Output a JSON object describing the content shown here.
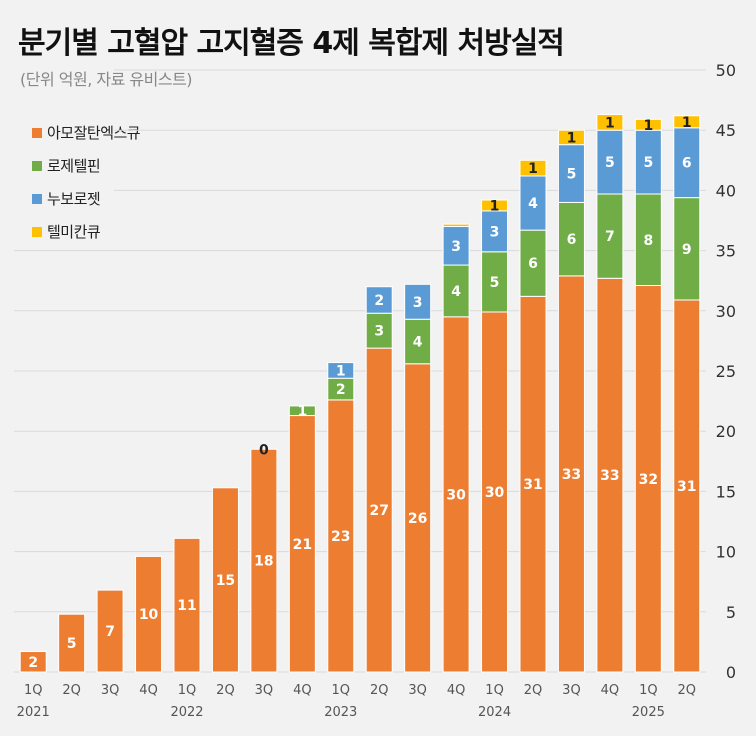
{
  "header": {
    "title": "분기별 고혈압 고지혈증 4제 복합제 처방실적",
    "subtitle": "(단위 억원, 자료 유비스트)"
  },
  "colors": {
    "아모잘탄엑스큐": "#ed7d31",
    "로제텔핀": "#70ad47",
    "누보로젯": "#5b9bd5",
    "텔미칸큐": "#ffc000"
  },
  "chart_data": {
    "type": "bar",
    "stacked": true,
    "title": "분기별 고혈압 고지혈증 4제 복합제 처방실적",
    "subtitle": "(단위 억원, 자료 유비스트)",
    "categories": [
      "1Q",
      "2Q",
      "3Q",
      "4Q",
      "1Q",
      "2Q",
      "3Q",
      "4Q",
      "1Q",
      "2Q",
      "3Q",
      "4Q",
      "1Q",
      "2Q",
      "3Q",
      "4Q",
      "1Q",
      "2Q"
    ],
    "year_labels": [
      {
        "index": 0,
        "label": "2021"
      },
      {
        "index": 4,
        "label": "2022"
      },
      {
        "index": 8,
        "label": "2023"
      },
      {
        "index": 12,
        "label": "2024"
      },
      {
        "index": 16,
        "label": "2025"
      }
    ],
    "series": [
      {
        "name": "아모잘탄엑스큐",
        "values": [
          1.7,
          4.8,
          6.8,
          9.6,
          11.1,
          15.3,
          18.5,
          21.3,
          22.6,
          26.9,
          25.6,
          29.5,
          29.9,
          31.2,
          32.9,
          32.7,
          32.1,
          30.9
        ],
        "labels": [
          "2",
          "5",
          "7",
          "10",
          "11",
          "15",
          "18",
          "21",
          "23",
          "27",
          "26",
          "30",
          "30",
          "31",
          "33",
          "33",
          "32",
          "31"
        ]
      },
      {
        "name": "로제텔핀",
        "values": [
          0,
          0,
          0,
          0,
          0,
          0,
          0,
          0.8,
          1.8,
          2.9,
          3.7,
          4.3,
          5.0,
          5.5,
          6.1,
          7.0,
          7.6,
          8.5
        ],
        "labels": [
          "",
          "",
          "",
          "",
          "",
          "",
          "",
          "1",
          "2",
          "3",
          "4",
          "4",
          "5",
          "6",
          "6",
          "7",
          "8",
          "9"
        ]
      },
      {
        "name": "누보로젯",
        "values": [
          0,
          0,
          0,
          0,
          0,
          0,
          0,
          0,
          1.3,
          2.2,
          2.9,
          3.2,
          3.4,
          4.5,
          4.8,
          5.3,
          5.3,
          5.8
        ],
        "labels": [
          "",
          "",
          "",
          "",
          "",
          "",
          "",
          "",
          "1",
          "2",
          "3",
          "3",
          "3",
          "4",
          "5",
          "5",
          "5",
          "6"
        ]
      },
      {
        "name": "텔미칸큐",
        "values": [
          0,
          0,
          0,
          0,
          0,
          0,
          0,
          0,
          0,
          0,
          0,
          0.2,
          0.9,
          1.3,
          1.2,
          1.3,
          0.9,
          1.0
        ],
        "labels": [
          "",
          "",
          "",
          "",
          "",
          "",
          "0",
          "",
          "",
          "",
          "",
          "",
          "1",
          "1",
          "1",
          "1",
          "1",
          "1"
        ]
      }
    ],
    "ylim": [
      0,
      50
    ],
    "yticks": [
      0,
      5,
      10,
      15,
      20,
      25,
      30,
      35,
      40,
      45,
      50
    ],
    "y_axis_position": "right",
    "grid": true,
    "legend_position": "top-left"
  }
}
